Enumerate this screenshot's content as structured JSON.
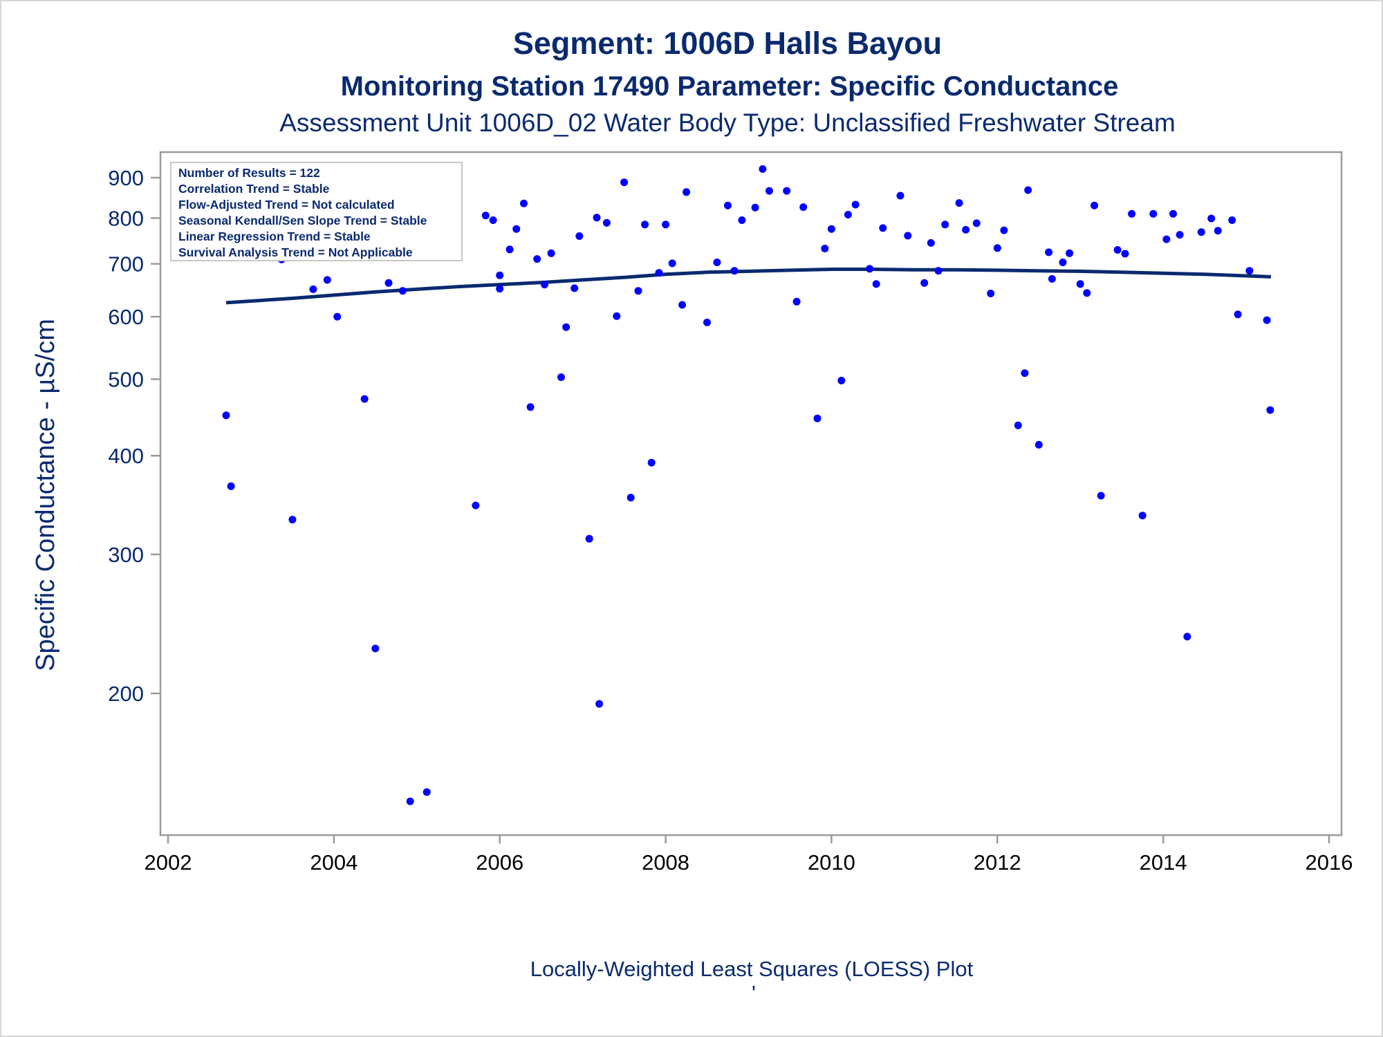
{
  "titles": {
    "line1": "Segment: 1006D  Halls Bayou",
    "line2": "Monitoring Station 17490 Parameter: Specific Conductance",
    "line3": "Assessment Unit 1006D_02   Water Body Type: Unclassified Freshwater Stream"
  },
  "footer": {
    "caption": "Locally-Weighted Least Squares (LOESS) Plot",
    "mark": "'"
  },
  "stats_box": [
    "Number of Results = 122",
    "Correlation Trend = Stable",
    "Flow-Adjusted Trend = Not calculated",
    "Seasonal Kendall/Sen Slope Trend = Stable",
    "Linear Regression Trend = Stable",
    "Survival Analysis Trend = Not Applicable"
  ],
  "colors": {
    "text": "#0a2a6e",
    "points": "#0000ff",
    "loess": "#0a2a6e",
    "axis": "#9a9a9a"
  },
  "chart_data": {
    "type": "scatter",
    "xlabel": "",
    "ylabel": "Specific Conductance -  µS/cm",
    "yscale": "log",
    "xlim": [
      2002,
      2016
    ],
    "ylim": [
      140,
      950
    ],
    "x_ticks": [
      2002,
      2004,
      2006,
      2008,
      2010,
      2012,
      2014,
      2016
    ],
    "y_ticks": [
      200,
      300,
      400,
      500,
      600,
      700,
      800,
      900
    ],
    "legend": "top-left",
    "grid": false,
    "points": [
      [
        2002.7,
        450
      ],
      [
        2002.76,
        366
      ],
      [
        2002.9,
        836
      ],
      [
        2002.95,
        718
      ],
      [
        2003.04,
        812
      ],
      [
        2003.12,
        845
      ],
      [
        2003.37,
        709
      ],
      [
        2003.42,
        840
      ],
      [
        2003.5,
        332
      ],
      [
        2003.62,
        800
      ],
      [
        2003.71,
        725
      ],
      [
        2003.75,
        650
      ],
      [
        2003.87,
        722
      ],
      [
        2003.92,
        668
      ],
      [
        2003.96,
        724
      ],
      [
        2004.04,
        600
      ],
      [
        2004.12,
        720
      ],
      [
        2004.25,
        728
      ],
      [
        2004.33,
        795
      ],
      [
        2004.37,
        472
      ],
      [
        2004.5,
        228
      ],
      [
        2004.58,
        763
      ],
      [
        2004.66,
        662
      ],
      [
        2004.83,
        647
      ],
      [
        2004.92,
        146
      ],
      [
        2005.0,
        860
      ],
      [
        2005.12,
        150
      ],
      [
        2005.17,
        763
      ],
      [
        2005.29,
        718
      ],
      [
        2005.37,
        766
      ],
      [
        2005.71,
        346
      ],
      [
        2005.83,
        806
      ],
      [
        2005.92,
        795
      ],
      [
        2006.0,
        677
      ],
      [
        2006.0,
        651
      ],
      [
        2006.12,
        730
      ],
      [
        2006.2,
        775
      ],
      [
        2006.29,
        835
      ],
      [
        2006.37,
        461
      ],
      [
        2006.45,
        710
      ],
      [
        2006.54,
        659
      ],
      [
        2006.62,
        722
      ],
      [
        2006.74,
        503
      ],
      [
        2006.8,
        582
      ],
      [
        2006.9,
        652
      ],
      [
        2006.96,
        759
      ],
      [
        2007.08,
        314
      ],
      [
        2007.17,
        801
      ],
      [
        2007.2,
        194
      ],
      [
        2007.29,
        789
      ],
      [
        2007.41,
        601
      ],
      [
        2007.5,
        888
      ],
      [
        2007.58,
        354
      ],
      [
        2007.67,
        647
      ],
      [
        2007.75,
        785
      ],
      [
        2007.83,
        392
      ],
      [
        2007.92,
        682
      ],
      [
        2008.0,
        785
      ],
      [
        2008.08,
        701
      ],
      [
        2008.2,
        621
      ],
      [
        2008.25,
        863
      ],
      [
        2008.5,
        590
      ],
      [
        2008.62,
        703
      ],
      [
        2008.75,
        830
      ],
      [
        2008.83,
        686
      ],
      [
        2008.92,
        795
      ],
      [
        2009.08,
        825
      ],
      [
        2009.17,
        923
      ],
      [
        2009.25,
        866
      ],
      [
        2009.46,
        866
      ],
      [
        2009.58,
        627
      ],
      [
        2009.66,
        826
      ],
      [
        2009.83,
        446
      ],
      [
        2009.92,
        732
      ],
      [
        2010.0,
        775
      ],
      [
        2010.12,
        498
      ],
      [
        2010.2,
        808
      ],
      [
        2010.29,
        832
      ],
      [
        2010.46,
        690
      ],
      [
        2010.54,
        660
      ],
      [
        2010.62,
        777
      ],
      [
        2010.83,
        854
      ],
      [
        2010.92,
        760
      ],
      [
        2011.12,
        662
      ],
      [
        2011.2,
        744
      ],
      [
        2011.29,
        686
      ],
      [
        2011.37,
        785
      ],
      [
        2011.54,
        836
      ],
      [
        2011.62,
        773
      ],
      [
        2011.75,
        788
      ],
      [
        2011.92,
        642
      ],
      [
        2012.0,
        733
      ],
      [
        2012.08,
        772
      ],
      [
        2012.25,
        437
      ],
      [
        2012.33,
        509
      ],
      [
        2012.37,
        868
      ],
      [
        2012.5,
        413
      ],
      [
        2012.62,
        724
      ],
      [
        2012.66,
        670
      ],
      [
        2012.79,
        703
      ],
      [
        2012.87,
        722
      ],
      [
        2013.0,
        660
      ],
      [
        2013.08,
        643
      ],
      [
        2013.17,
        830
      ],
      [
        2013.25,
        356
      ],
      [
        2013.45,
        729
      ],
      [
        2013.54,
        721
      ],
      [
        2013.62,
        810
      ],
      [
        2013.75,
        336
      ],
      [
        2013.88,
        810
      ],
      [
        2014.04,
        752
      ],
      [
        2014.12,
        810
      ],
      [
        2014.2,
        762
      ],
      [
        2014.29,
        236
      ],
      [
        2014.46,
        768
      ],
      [
        2014.58,
        799
      ],
      [
        2014.66,
        771
      ],
      [
        2014.83,
        795
      ],
      [
        2014.9,
        604
      ],
      [
        2015.04,
        686
      ],
      [
        2015.25,
        594
      ],
      [
        2015.29,
        457
      ]
    ],
    "series": [
      {
        "type": "line",
        "x": [
          2002.7,
          2003.0,
          2003.5,
          2004.0,
          2004.5,
          2005.0,
          2005.5,
          2006.0,
          2006.5,
          2007.0,
          2007.5,
          2008.0,
          2008.5,
          2009.0,
          2009.5,
          2010.0,
          2010.5,
          2011.0,
          2011.5,
          2012.0,
          2012.5,
          2013.0,
          2013.5,
          2014.0,
          2014.5,
          2015.0,
          2015.3
        ],
        "values": [
          625,
          628,
          633,
          639,
          645,
          650,
          655,
          659,
          663,
          668,
          673,
          679,
          683,
          685,
          687,
          689,
          689,
          688,
          688,
          687,
          686,
          685,
          683,
          681,
          679,
          676,
          674
        ]
      }
    ]
  }
}
